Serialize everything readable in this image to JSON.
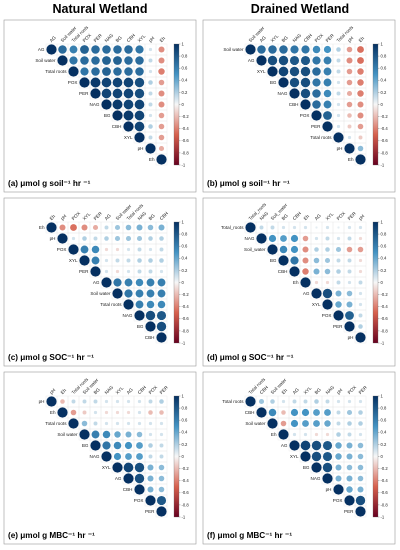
{
  "headers": {
    "left": "Natural Wetland",
    "right": "Drained Wetland"
  },
  "colors": {
    "positive": "#053061",
    "neutral": "#f7f7f7",
    "negative": "#67001f",
    "border": "#999999",
    "cell_grid": "#e6e6e6"
  },
  "colorbar_ticks": [
    "1",
    "0.8",
    "0.6",
    "0.4",
    "0.2",
    "0",
    "-0.2",
    "-0.4",
    "-0.6",
    "-0.8",
    "-1"
  ],
  "chart_data": [
    {
      "type": "heatmap",
      "panel": "a",
      "caption": "(a) μmol g soil⁻¹ hr ⁻¹",
      "variables": [
        "AG",
        "Soil water",
        "Total roots",
        "POX",
        "PER",
        "NAG",
        "BG",
        "CBH",
        "XYL",
        "pH",
        "Eh"
      ],
      "matrix": [
        [
          null,
          0.7,
          0.6,
          0.75,
          0.7,
          0.7,
          0.7,
          0.7,
          0.65,
          0.1,
          -0.35
        ],
        [
          null,
          null,
          0.65,
          0.7,
          0.7,
          0.75,
          0.75,
          0.7,
          0.7,
          0.15,
          -0.35
        ],
        [
          null,
          null,
          null,
          0.65,
          0.7,
          0.75,
          0.7,
          0.7,
          0.7,
          0.1,
          -0.4
        ],
        [
          null,
          null,
          null,
          null,
          0.95,
          0.9,
          0.9,
          0.9,
          0.85,
          0.2,
          -0.3
        ],
        [
          null,
          null,
          null,
          null,
          null,
          0.9,
          0.9,
          0.9,
          0.85,
          0.15,
          -0.35
        ],
        [
          null,
          null,
          null,
          null,
          null,
          null,
          0.95,
          0.9,
          0.9,
          0.15,
          -0.35
        ],
        [
          null,
          null,
          null,
          null,
          null,
          null,
          null,
          0.95,
          0.9,
          0.1,
          -0.3
        ],
        [
          null,
          null,
          null,
          null,
          null,
          null,
          null,
          null,
          0.9,
          0.2,
          -0.3
        ],
        [
          null,
          null,
          null,
          null,
          null,
          null,
          null,
          null,
          null,
          0.15,
          -0.3
        ],
        [
          null,
          null,
          null,
          null,
          null,
          null,
          null,
          null,
          null,
          null,
          -0.25
        ],
        [
          null,
          null,
          null,
          null,
          null,
          null,
          null,
          null,
          null,
          null,
          null
        ]
      ],
      "colorbar": {
        "range": [
          -1,
          1
        ]
      }
    },
    {
      "type": "heatmap",
      "panel": "b",
      "caption": "(b) μmol g soil⁻¹ hr ⁻¹",
      "variables": [
        "Soil water",
        "AG",
        "XYL",
        "BG",
        "NAG",
        "CBH",
        "POX",
        "PER",
        "Total roots",
        "pH",
        "Eh"
      ],
      "matrix": [
        [
          null,
          0.7,
          0.7,
          0.7,
          0.65,
          0.65,
          0.55,
          0.5,
          0.2,
          -0.3,
          -0.45
        ],
        [
          null,
          null,
          0.85,
          0.85,
          0.8,
          0.8,
          0.65,
          0.6,
          0.15,
          -0.35,
          -0.45
        ],
        [
          null,
          null,
          null,
          0.9,
          0.85,
          0.85,
          0.7,
          0.6,
          0.15,
          -0.3,
          -0.4
        ],
        [
          null,
          null,
          null,
          null,
          0.85,
          0.85,
          0.65,
          0.6,
          0.1,
          -0.3,
          -0.4
        ],
        [
          null,
          null,
          null,
          null,
          null,
          0.85,
          0.7,
          0.55,
          0.15,
          -0.25,
          -0.4
        ],
        [
          null,
          null,
          null,
          null,
          null,
          null,
          0.7,
          0.6,
          0.1,
          -0.3,
          -0.35
        ],
        [
          null,
          null,
          null,
          null,
          null,
          null,
          null,
          0.75,
          0.1,
          -0.2,
          -0.35
        ],
        [
          null,
          null,
          null,
          null,
          null,
          null,
          null,
          null,
          0.1,
          -0.15,
          -0.3
        ],
        [
          null,
          null,
          null,
          null,
          null,
          null,
          null,
          null,
          null,
          0.1,
          -0.15
        ],
        [
          null,
          null,
          null,
          null,
          null,
          null,
          null,
          null,
          null,
          null,
          0.3
        ],
        [
          null,
          null,
          null,
          null,
          null,
          null,
          null,
          null,
          null,
          null,
          null
        ]
      ],
      "colorbar": {
        "range": [
          -1,
          1
        ]
      }
    },
    {
      "type": "heatmap",
      "panel": "c",
      "caption": "(c) μmol g SOC⁻¹ hr ⁻¹",
      "variables": [
        "Eh",
        "pH",
        "POX",
        "XYL",
        "PER",
        "AG",
        "Soil water",
        "Total roots",
        "NAG",
        "BG",
        "CBH"
      ],
      "matrix": [
        [
          null,
          -0.35,
          -0.45,
          -0.35,
          -0.25,
          0.15,
          0.25,
          0.3,
          0.35,
          0.3,
          0.35
        ],
        [
          null,
          null,
          0.1,
          0.2,
          0.15,
          0.2,
          0.25,
          0.25,
          0.25,
          0.2,
          0.2
        ],
        [
          null,
          null,
          null,
          0.6,
          0.55,
          -0.1,
          -0.1,
          0.1,
          0.15,
          0.1,
          0.15
        ],
        [
          null,
          null,
          null,
          null,
          0.6,
          0.1,
          0.15,
          0.15,
          0.2,
          0.2,
          0.2
        ],
        [
          null,
          null,
          null,
          null,
          null,
          0.1,
          -0.1,
          0.1,
          0.15,
          0.15,
          0.1
        ],
        [
          null,
          null,
          null,
          null,
          null,
          null,
          0.65,
          0.6,
          0.55,
          0.6,
          0.6
        ],
        [
          null,
          null,
          null,
          null,
          null,
          null,
          null,
          0.65,
          0.6,
          0.6,
          0.6
        ],
        [
          null,
          null,
          null,
          null,
          null,
          null,
          null,
          null,
          0.6,
          0.55,
          0.55
        ],
        [
          null,
          null,
          null,
          null,
          null,
          null,
          null,
          null,
          null,
          0.85,
          0.8
        ],
        [
          null,
          null,
          null,
          null,
          null,
          null,
          null,
          null,
          null,
          null,
          0.85
        ],
        [
          null,
          null,
          null,
          null,
          null,
          null,
          null,
          null,
          null,
          null,
          null
        ]
      ],
      "colorbar": {
        "range": [
          -1,
          1
        ]
      }
    },
    {
      "type": "heatmap",
      "panel": "d",
      "caption": "(d) μmol g SOC⁻¹ hr ⁻¹",
      "variables": [
        "Total_roots",
        "NAG",
        "Soil_water",
        "BG",
        "CBH",
        "Eh",
        "AG",
        "XYL",
        "POX",
        "PER",
        "pH"
      ],
      "matrix": [
        [
          null,
          0.15,
          0.15,
          0.1,
          0.1,
          0.1,
          0.05,
          0.1,
          0.05,
          0.1,
          0.1
        ],
        [
          null,
          null,
          0.5,
          0.45,
          0.5,
          -0.3,
          0.1,
          0.15,
          0.1,
          0.15,
          -0.1
        ],
        [
          null,
          null,
          null,
          0.55,
          0.5,
          -0.35,
          0.2,
          0.2,
          0.25,
          -0.3,
          -0.3
        ],
        [
          null,
          null,
          null,
          null,
          0.65,
          -0.35,
          0.3,
          0.25,
          0.15,
          0.15,
          -0.1
        ],
        [
          null,
          null,
          null,
          null,
          null,
          -0.4,
          0.35,
          0.3,
          0.2,
          0.15,
          -0.1
        ],
        [
          null,
          null,
          null,
          null,
          null,
          null,
          -0.1,
          -0.1,
          0.15,
          0.1,
          0.15
        ],
        [
          null,
          null,
          null,
          null,
          null,
          null,
          null,
          0.85,
          0.35,
          0.3,
          0.1
        ],
        [
          null,
          null,
          null,
          null,
          null,
          null,
          null,
          null,
          0.4,
          0.35,
          0.1
        ],
        [
          null,
          null,
          null,
          null,
          null,
          null,
          null,
          null,
          null,
          0.75,
          0.15
        ],
        [
          null,
          null,
          null,
          null,
          null,
          null,
          null,
          null,
          null,
          null,
          0.2
        ],
        [
          null,
          null,
          null,
          null,
          null,
          null,
          null,
          null,
          null,
          null,
          null
        ]
      ],
      "colorbar": {
        "range": [
          -1,
          1
        ]
      }
    },
    {
      "type": "heatmap",
      "panel": "e",
      "caption": "(e) μmol g MBC⁻¹ hr ⁻¹",
      "variables": [
        "pH",
        "Eh",
        "Total roots",
        "Soil water",
        "BG",
        "NAG",
        "XYL",
        "AG",
        "CBH",
        "POX",
        "PER"
      ],
      "matrix": [
        [
          null,
          -0.2,
          0.15,
          0.15,
          0.15,
          0.1,
          0.1,
          0.1,
          0.1,
          0.15,
          0.2
        ],
        [
          null,
          null,
          -0.3,
          -0.15,
          0.1,
          -0.1,
          -0.1,
          -0.1,
          0.1,
          -0.2,
          -0.2
        ],
        [
          null,
          null,
          null,
          0.3,
          0.15,
          0.1,
          0.1,
          0.1,
          0.1,
          0.1,
          0.1
        ],
        [
          null,
          null,
          null,
          null,
          0.6,
          0.55,
          0.4,
          0.35,
          0.3,
          0.1,
          0.1
        ],
        [
          null,
          null,
          null,
          null,
          null,
          0.65,
          0.55,
          0.5,
          0.45,
          0.2,
          0.15
        ],
        [
          null,
          null,
          null,
          null,
          null,
          null,
          0.5,
          0.45,
          0.45,
          0.15,
          0.15
        ],
        [
          null,
          null,
          null,
          null,
          null,
          null,
          null,
          0.9,
          0.85,
          0.35,
          0.3
        ],
        [
          null,
          null,
          null,
          null,
          null,
          null,
          null,
          null,
          0.85,
          0.35,
          0.3
        ],
        [
          null,
          null,
          null,
          null,
          null,
          null,
          null,
          null,
          null,
          0.35,
          0.3
        ],
        [
          null,
          null,
          null,
          null,
          null,
          null,
          null,
          null,
          null,
          null,
          0.8
        ],
        [
          null,
          null,
          null,
          null,
          null,
          null,
          null,
          null,
          null,
          null,
          null
        ]
      ],
      "colorbar": {
        "range": [
          -1,
          1
        ]
      }
    },
    {
      "type": "heatmap",
      "panel": "f",
      "caption": "(f) μmol g MBC⁻¹ hr ⁻¹",
      "variables": [
        "Total roots",
        "CBH",
        "Soil water",
        "Eh",
        "AG",
        "XYL",
        "BG",
        "NAG",
        "pH",
        "POX",
        "PER"
      ],
      "matrix": [
        [
          null,
          0.25,
          0.2,
          0.1,
          0.15,
          0.15,
          0.2,
          0.15,
          0.1,
          0.1,
          0.1
        ],
        [
          null,
          null,
          0.55,
          -0.2,
          0.5,
          0.5,
          0.45,
          0.45,
          0.15,
          0.25,
          0.2
        ],
        [
          null,
          null,
          null,
          -0.3,
          0.5,
          0.45,
          0.45,
          0.4,
          0.15,
          0.2,
          0.2
        ],
        [
          null,
          null,
          null,
          null,
          0.1,
          0.1,
          -0.1,
          -0.1,
          0.2,
          0.15,
          0.1
        ],
        [
          null,
          null,
          null,
          null,
          null,
          0.9,
          0.85,
          0.8,
          0.4,
          0.35,
          0.3
        ],
        [
          null,
          null,
          null,
          null,
          null,
          null,
          0.85,
          0.8,
          0.4,
          0.35,
          0.3
        ],
        [
          null,
          null,
          null,
          null,
          null,
          null,
          null,
          0.85,
          0.35,
          0.3,
          0.3
        ],
        [
          null,
          null,
          null,
          null,
          null,
          null,
          null,
          null,
          0.35,
          0.35,
          0.3
        ],
        [
          null,
          null,
          null,
          null,
          null,
          null,
          null,
          null,
          null,
          0.4,
          0.35
        ],
        [
          null,
          null,
          null,
          null,
          null,
          null,
          null,
          null,
          null,
          null,
          0.85
        ],
        [
          null,
          null,
          null,
          null,
          null,
          null,
          null,
          null,
          null,
          null,
          null
        ]
      ],
      "colorbar": {
        "range": [
          -1,
          1
        ]
      }
    }
  ]
}
